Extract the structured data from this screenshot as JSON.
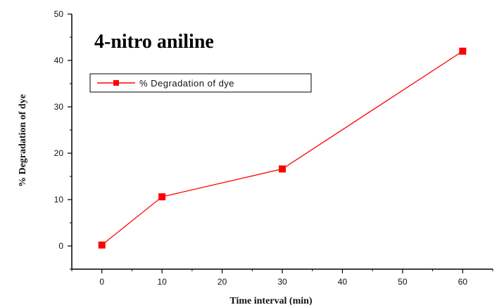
{
  "chart_data": {
    "type": "line",
    "title": "4-nitro aniline",
    "xlabel": "Time interval (min)",
    "ylabel": "% Degradation of dye",
    "xlim": [
      -5,
      65
    ],
    "ylim": [
      -5,
      50
    ],
    "xticks": [
      0,
      10,
      20,
      30,
      40,
      50,
      60
    ],
    "yticks": [
      0,
      10,
      20,
      30,
      40,
      50
    ],
    "grid": false,
    "legend_position": "top-left",
    "series": [
      {
        "name": "% Degradation of dye",
        "color": "#ff0000",
        "marker": "square",
        "x": [
          0,
          10,
          30,
          60
        ],
        "y": [
          0.2,
          10.6,
          16.6,
          42.0
        ]
      }
    ]
  }
}
